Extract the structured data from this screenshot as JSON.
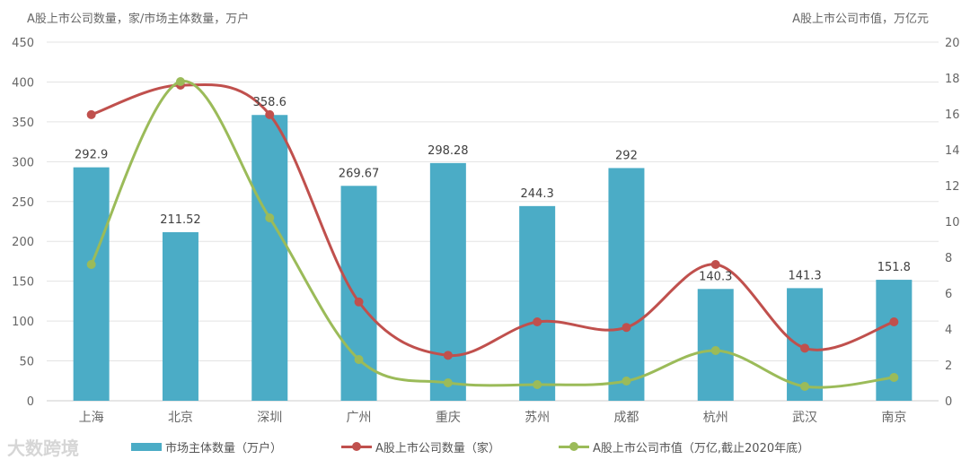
{
  "chart_data": {
    "type": "bar+line",
    "title": "",
    "left_axis_label": "A股上市公司数量，家/市场主体数量，万户",
    "right_axis_label": "A股上市公司市值，万亿元",
    "categories": [
      "上海",
      "北京",
      "深圳",
      "广州",
      "重庆",
      "苏州",
      "成都",
      "杭州",
      "武汉",
      "南京"
    ],
    "left_ticks": [
      "0",
      "50",
      "100",
      "150",
      "200",
      "250",
      "300",
      "350",
      "400",
      "450"
    ],
    "right_ticks": [
      "0",
      "2",
      "4",
      "6",
      "8",
      "10",
      "12",
      "14",
      "16",
      "18",
      "20"
    ],
    "ylim_left": [
      0,
      450
    ],
    "ylim_right": [
      0,
      20
    ],
    "grid": true,
    "legend_position": "bottom",
    "series": [
      {
        "name": "市场主体数量（万户）",
        "type": "bar",
        "axis": "left",
        "color": "#4BACC6",
        "values": [
          292.9,
          211.52,
          358.6,
          269.67,
          298.28,
          244.3,
          292,
          140.3,
          141.3,
          151.8
        ],
        "labels": [
          "292.9",
          "211.52",
          "358.6",
          "269.67",
          "298.28",
          "244.3",
          "292",
          "140.3",
          "141.3",
          "151.8"
        ]
      },
      {
        "name": "A股上市公司数量（家）",
        "type": "line",
        "axis": "left",
        "color": "#C0504D",
        "values": [
          359,
          396,
          359,
          124,
          57,
          99,
          92,
          171,
          66,
          99
        ]
      },
      {
        "name": "A股上市公司市值（万亿,截止2020年底）",
        "type": "line",
        "axis": "right",
        "color": "#9BBB59",
        "values": [
          7.6,
          17.8,
          10.2,
          2.3,
          1.0,
          0.9,
          1.1,
          2.8,
          0.8,
          1.3
        ]
      }
    ]
  },
  "watermark": "大数跨境"
}
